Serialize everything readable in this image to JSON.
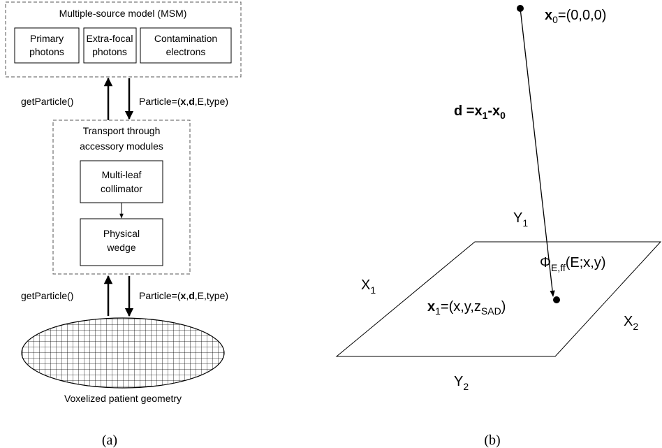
{
  "panel_a": {
    "msm": {
      "title": "Multiple-source model (MSM)",
      "boxes": [
        [
          "Primary",
          "photons"
        ],
        [
          "Extra-focal",
          "photons"
        ],
        [
          "Contamination",
          "electrons"
        ]
      ]
    },
    "arrows_top": {
      "up_label": "getParticle()",
      "down_label": [
        "Particle=(",
        "x",
        ",",
        "d",
        ",E,type)"
      ]
    },
    "transport": {
      "title": [
        "Transport through",
        "accessory modules"
      ],
      "mlc": [
        "Multi-leaf",
        "collimator"
      ],
      "wedge": [
        "Physical",
        "wedge"
      ]
    },
    "arrows_bottom": {
      "up_label": "getParticle()",
      "down_label": [
        "Particle=(",
        "x",
        ",",
        "d",
        ",E,type)"
      ]
    },
    "patient_label": "Voxelized patient geometry",
    "caption": "(a)"
  },
  "panel_b": {
    "x0_label": [
      "x",
      "0",
      "=(0,0,0)"
    ],
    "d_label": [
      "d",
      " =x",
      "1",
      "-x",
      "0"
    ],
    "y1_label": [
      "Y",
      "1"
    ],
    "phi_label": [
      "Φ",
      "E,ff",
      "(E;x,y)"
    ],
    "x1_axis_label": [
      "X",
      "1"
    ],
    "x1_label": [
      "x",
      "1",
      "=(x,y,z",
      "SAD",
      ")"
    ],
    "x2_label": [
      "X",
      "2"
    ],
    "y2_label": [
      "Y",
      "2"
    ],
    "caption": "(b)"
  }
}
